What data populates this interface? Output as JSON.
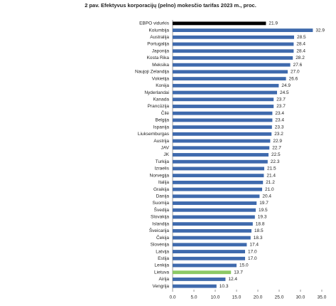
{
  "chart_data": {
    "type": "barh",
    "title": "2 pav. Efektyvus korporacijų (pelno) mokesčio tarifas 2023 m., proc.",
    "categories": [
      "EBPO vidurkis",
      "Kolumbija",
      "Australija",
      "Portugalija",
      "Japonija",
      "Kosta Rika",
      "Meksika",
      "Naujoji Zelandija",
      "Vokietija",
      "Korėja",
      "Nyderlandai",
      "Kanada",
      "Prancūzija",
      "Čilė",
      "Belgija",
      "Ispanija",
      "Liuksemburgas",
      "Austrija",
      "JAV",
      "JK",
      "Turkija",
      "Izraelis",
      "Norvegija",
      "Italija",
      "Graikija",
      "Danija",
      "Suomija",
      "Švedija",
      "Slovakija",
      "Islandija",
      "Šveicarija",
      "Čekija",
      "Slovėnija",
      "Latvija",
      "Estija",
      "Lenkija",
      "Lietuva",
      "Airija",
      "Vengrija"
    ],
    "values": [
      21.9,
      32.9,
      28.5,
      28.4,
      28.4,
      28.2,
      27.6,
      27.0,
      26.6,
      24.9,
      24.5,
      23.7,
      23.7,
      23.4,
      23.4,
      23.3,
      23.2,
      22.9,
      22.7,
      22.5,
      22.3,
      21.5,
      21.4,
      21.2,
      21.0,
      20.4,
      19.7,
      19.5,
      19.3,
      18.8,
      18.5,
      18.3,
      17.4,
      17.0,
      17.0,
      15.0,
      13.7,
      12.4,
      10.3
    ],
    "value_labels": [
      "21.9",
      "32.9",
      "28.5",
      "28.4",
      "28.4",
      "28.2",
      "27.6",
      "27.0",
      "26.6",
      "24.9",
      "24.5",
      "23.7",
      "23.7",
      "23.4",
      "23.4",
      "23.3",
      "23.2",
      "22.9",
      "22.7",
      "22.5",
      "22.3",
      "21.5",
      "21.4",
      "21.2",
      "21.0",
      "20.4",
      "19.7",
      "19.5",
      "19.3",
      "18.8",
      "18.5",
      "18.3",
      "17.4",
      "17.0",
      "17.0",
      "15.0",
      "13.7",
      "12.4",
      "10.3"
    ],
    "color": "#3f6aad",
    "highlights": [
      {
        "index": 0,
        "color": "#000000"
      },
      {
        "index": 36,
        "color": "#8cc966"
      }
    ],
    "xlim": [
      0,
      35
    ],
    "xticks": [
      {
        "value": 0,
        "label": "0.0"
      },
      {
        "value": 5,
        "label": "5.0"
      },
      {
        "value": 10,
        "label": "10.0"
      },
      {
        "value": 15,
        "label": "15.0"
      },
      {
        "value": 20,
        "label": "20.0"
      },
      {
        "value": 25,
        "label": "25.0"
      },
      {
        "value": 30,
        "label": "30.0"
      },
      {
        "value": 35,
        "label": "35.0"
      }
    ]
  }
}
